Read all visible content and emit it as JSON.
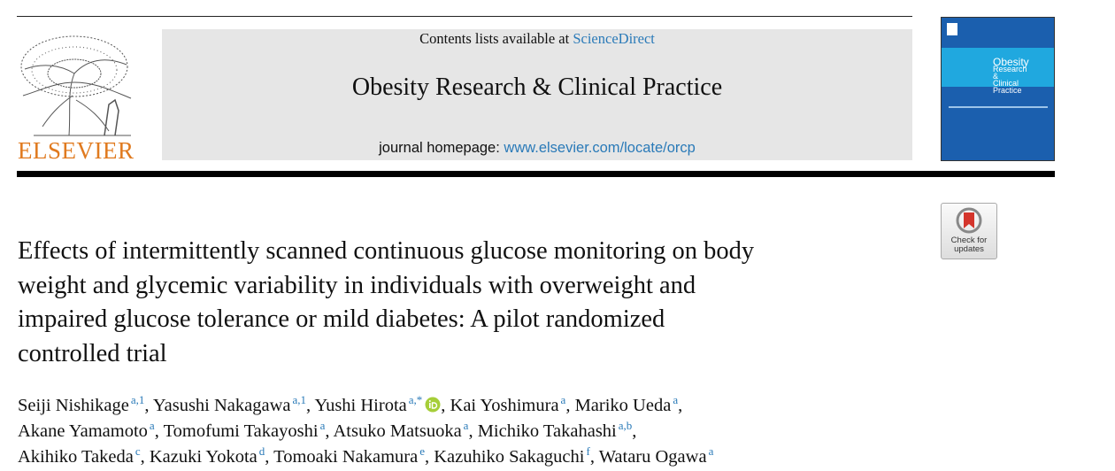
{
  "header": {
    "contents_prefix": "Contents lists available at",
    "contents_link": "ScienceDirect",
    "journal": "Obesity Research & Clinical Practice",
    "homepage_prefix": "journal homepage:",
    "homepage_link": "www.elsevier.com/locate/orcp",
    "publisher": "ELSEVIER",
    "cover_lines": [
      "Obesity",
      "Research",
      "&",
      "Clinical",
      "Practice"
    ]
  },
  "check_updates": [
    "Check for",
    "updates"
  ],
  "title_lines": [
    "Effects of intermittently scanned continuous glucose monitoring on body",
    "weight and glycemic variability in individuals with overweight and",
    "impaired glucose tolerance or mild diabetes: A pilot randomized",
    "controlled trial"
  ],
  "author_separator": ",",
  "author_lines": [
    [
      {
        "name": "Seiji Nishikage",
        "sup": "a,1"
      },
      {
        "name": "Yasushi Nakagawa",
        "sup": "a,1"
      },
      {
        "name": "Yushi Hirota",
        "sup": "a,*",
        "orcid": true
      },
      {
        "name": "Kai Yoshimura",
        "sup": "a"
      },
      {
        "name": "Mariko Ueda",
        "sup": "a"
      }
    ],
    [
      {
        "name": "Akane Yamamoto",
        "sup": "a"
      },
      {
        "name": "Tomofumi Takayoshi",
        "sup": "a"
      },
      {
        "name": "Atsuko Matsuoka",
        "sup": "a"
      },
      {
        "name": "Michiko Takahashi",
        "sup": "a,b"
      }
    ],
    [
      {
        "name": "Akihiko Takeda",
        "sup": "c"
      },
      {
        "name": "Kazuki Yokota",
        "sup": "d"
      },
      {
        "name": "Tomoaki Nakamura",
        "sup": "e"
      },
      {
        "name": "Kazuhiko Sakaguchi",
        "sup": "f"
      },
      {
        "name": "Wataru Ogawa",
        "sup": "a"
      }
    ]
  ]
}
